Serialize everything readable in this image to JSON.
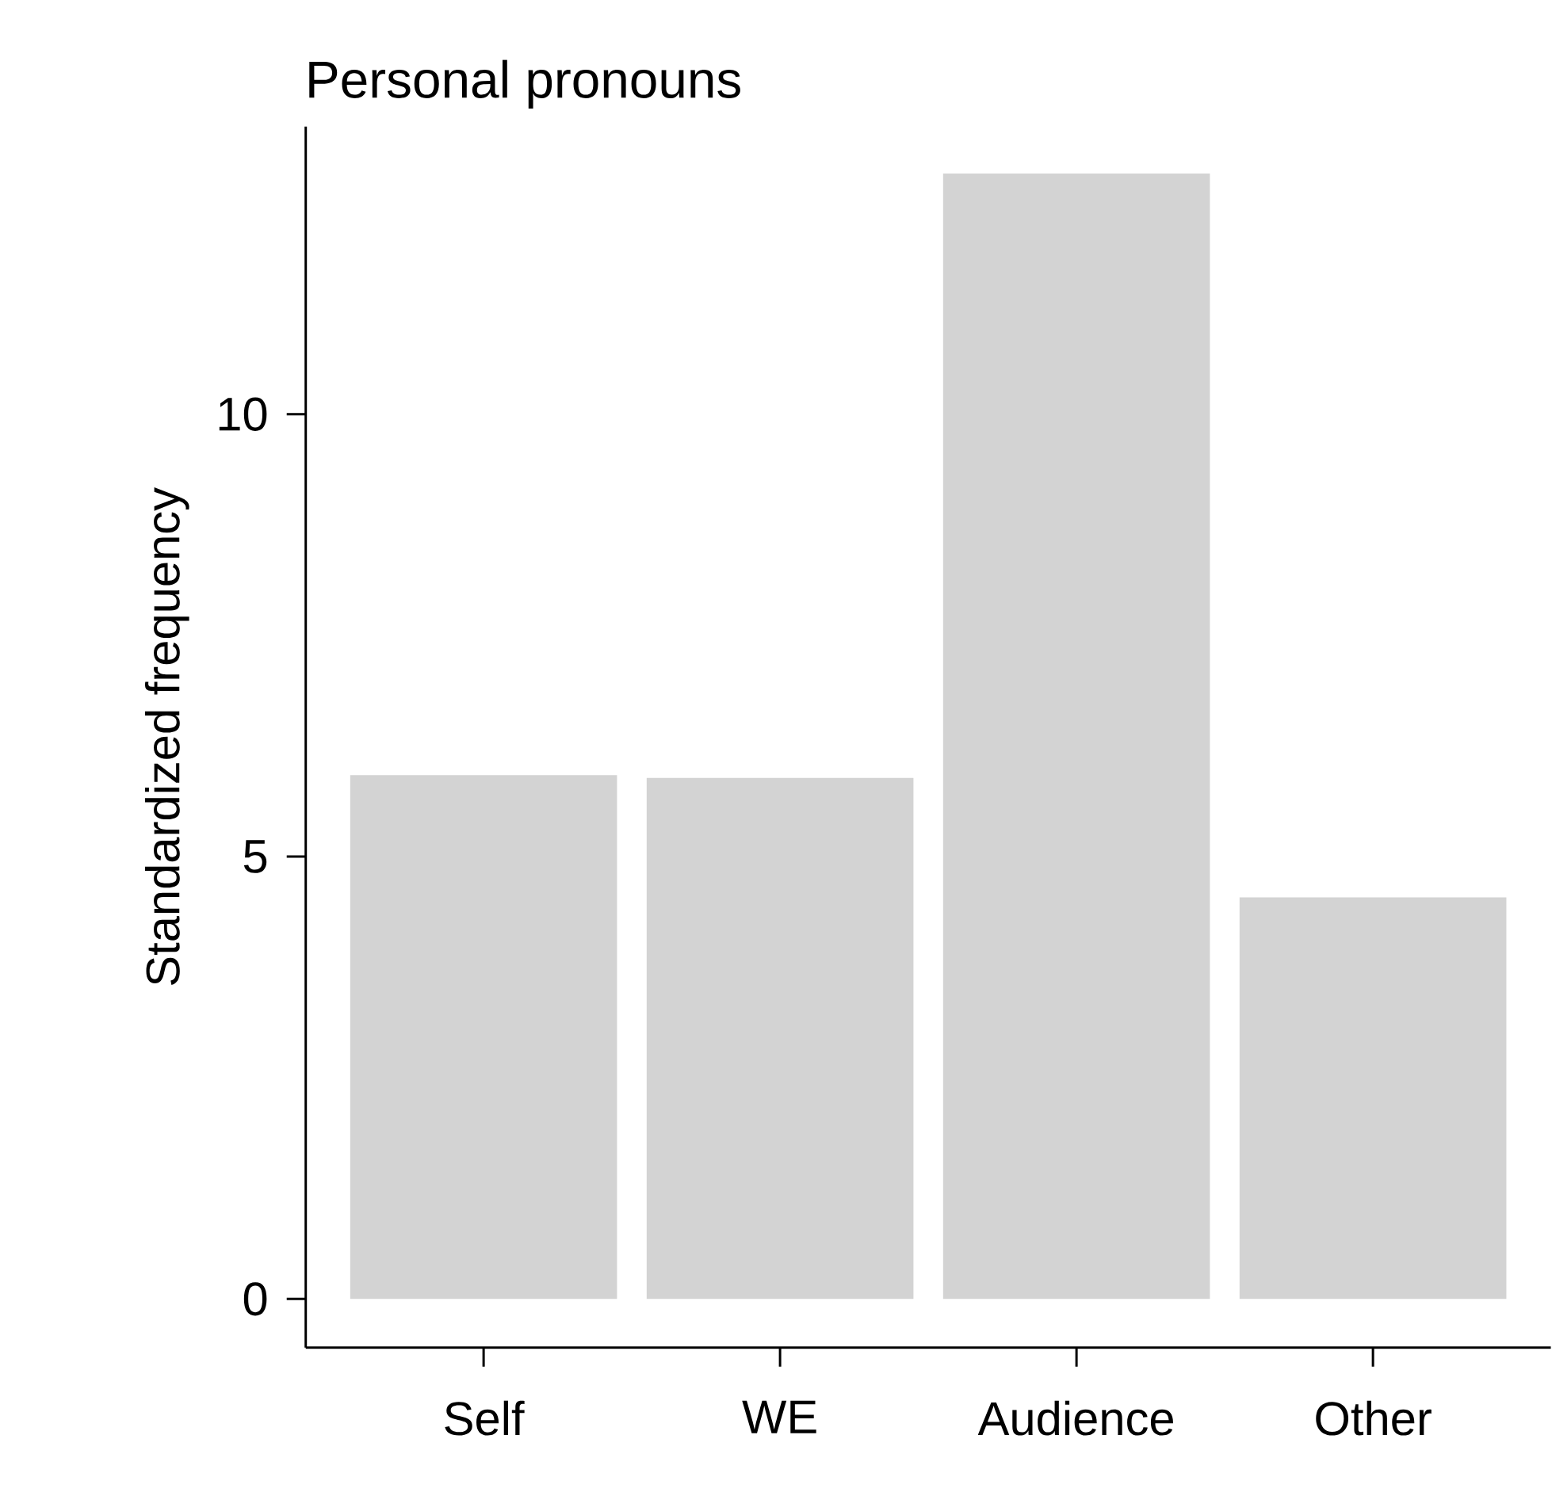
{
  "chart_data": {
    "type": "bar",
    "title": "Personal pronouns",
    "ylabel": "Standardized frequency",
    "categories": [
      "Self",
      "WE",
      "Audience",
      "Other"
    ],
    "values": [
      5.92,
      5.89,
      12.72,
      4.54
    ],
    "color": "#d3d3d3",
    "ylim": [
      -0.55,
      13.25
    ],
    "yticks": [
      0,
      5,
      10
    ]
  }
}
